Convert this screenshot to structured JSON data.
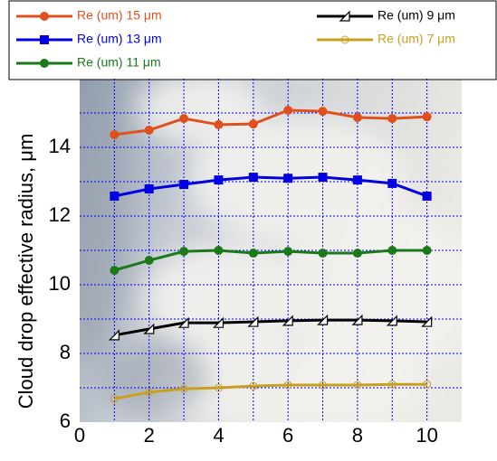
{
  "chart_data": {
    "type": "line",
    "y_label": "Cloud drop effective radius, μm",
    "xlim": [
      0,
      11
    ],
    "xticks": [
      0,
      2,
      4,
      6,
      8,
      10
    ],
    "xminor": [
      1,
      3,
      5,
      7,
      9
    ],
    "ylim": [
      6,
      16
    ],
    "yticks": [
      6,
      8,
      10,
      12,
      14
    ],
    "yminor": [
      7,
      9,
      11,
      13,
      15
    ],
    "grid": true,
    "grid_color": "#0000ff",
    "x": [
      1,
      2,
      3,
      4,
      5,
      6,
      7,
      8,
      9,
      10
    ],
    "series": [
      {
        "name": "Re (um) 15 μm",
        "color": "#e0501e",
        "marker": "circle",
        "values": [
          14.37,
          14.5,
          14.84,
          14.66,
          14.68,
          15.08,
          15.05,
          14.87,
          14.84,
          14.89
        ]
      },
      {
        "name": "Re (um) 13 μm",
        "color": "#0000e0",
        "marker": "square",
        "values": [
          12.58,
          12.79,
          12.92,
          13.05,
          13.13,
          13.1,
          13.13,
          13.05,
          12.95,
          12.58
        ]
      },
      {
        "name": "Re (um) 11 μm",
        "color": "#1a7a1a",
        "marker": "circle",
        "values": [
          10.42,
          10.71,
          10.97,
          11.0,
          10.92,
          10.97,
          10.92,
          10.92,
          11.0,
          11.0
        ]
      },
      {
        "name": "Re (um) 9 μm",
        "color": "#000000",
        "marker": "triangle",
        "values": [
          8.53,
          8.71,
          8.89,
          8.89,
          8.92,
          8.95,
          8.97,
          8.97,
          8.95,
          8.92
        ]
      },
      {
        "name": "Re (um) 7 μm",
        "color": "#c8a020",
        "marker": "open-circle",
        "values": [
          6.68,
          6.87,
          6.97,
          7.0,
          7.05,
          7.08,
          7.08,
          7.08,
          7.1,
          7.1
        ]
      }
    ]
  }
}
